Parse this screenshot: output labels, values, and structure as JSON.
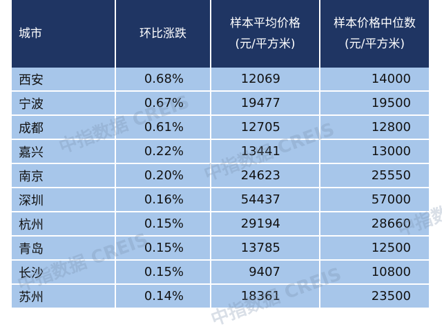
{
  "table": {
    "header": [
      [
        "城市"
      ],
      [
        "环比涨跌"
      ],
      [
        "样本平均价格",
        "(元/平方米)"
      ],
      [
        "样本价格中位数",
        "(元/平方米)"
      ]
    ],
    "rows": [
      [
        "西安",
        "0.68%",
        "12069",
        "14000"
      ],
      [
        "宁波",
        "0.67%",
        "19477",
        "19500"
      ],
      [
        "成都",
        "0.61%",
        "12705",
        "12800"
      ],
      [
        "嘉兴",
        "0.22%",
        "13441",
        "13000"
      ],
      [
        "南京",
        "0.20%",
        "24623",
        "25550"
      ],
      [
        "深圳",
        "0.16%",
        "54437",
        "57000"
      ],
      [
        "杭州",
        "0.15%",
        "29194",
        "28660"
      ],
      [
        "青岛",
        "0.15%",
        "13785",
        "12500"
      ],
      [
        "长沙",
        "0.15%",
        "9407",
        "10800"
      ],
      [
        "苏州",
        "0.14%",
        "18361",
        "23500"
      ]
    ]
  },
  "watermark": "中指数据 CREIS"
}
